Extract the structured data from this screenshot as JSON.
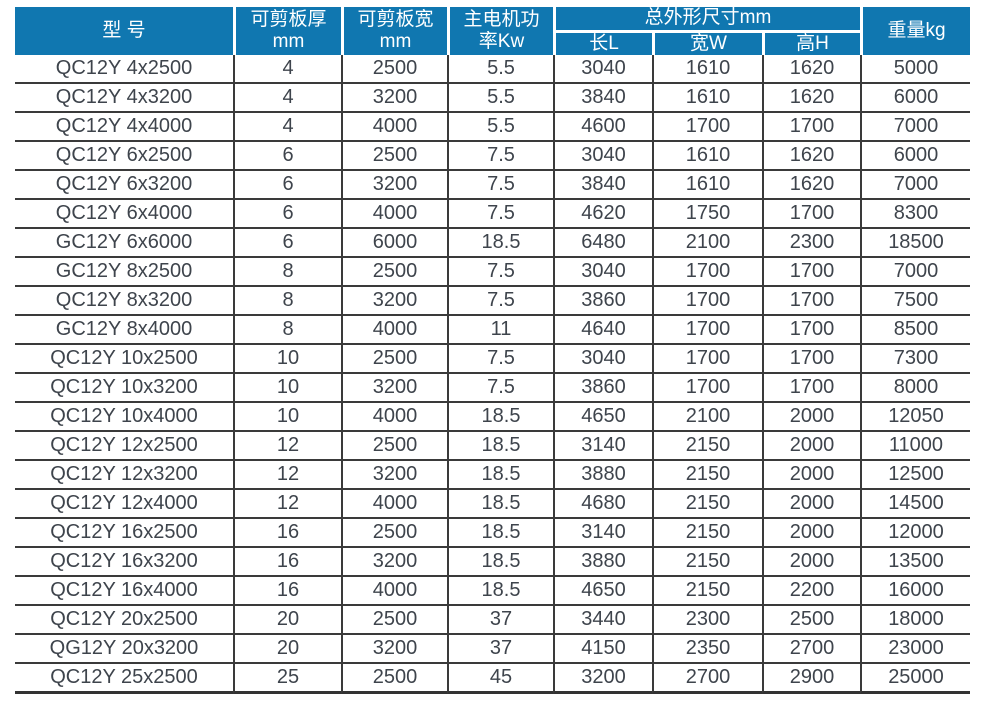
{
  "colors": {
    "header_bg": "#1077b0",
    "header_text": "#ffffff",
    "border": "#3a3a3a",
    "body_text": "#3e444c",
    "page_bg": "#ffffff"
  },
  "table": {
    "column_keys": [
      "model",
      "thickness_mm",
      "width_mm",
      "power_kw",
      "length_l",
      "width_w",
      "height_h",
      "weight_kg"
    ],
    "header": {
      "model": "型 号",
      "thickness_line1": "可剪板厚",
      "thickness_line2": "mm",
      "width_line1": "可剪板宽",
      "width_line2": "mm",
      "power_line1": "主电机功",
      "power_line2": "率Kw",
      "dimensions_group": "总外形尺寸mm",
      "dim_length": "长L",
      "dim_width": "宽W",
      "dim_height": "高H",
      "weight": "重量kg"
    },
    "rows": [
      [
        "QC12Y 4x2500",
        "4",
        "2500",
        "5.5",
        "3040",
        "1610",
        "1620",
        "5000"
      ],
      [
        "QC12Y 4x3200",
        "4",
        "3200",
        "5.5",
        "3840",
        "1610",
        "1620",
        "6000"
      ],
      [
        "QC12Y 4x4000",
        "4",
        "4000",
        "5.5",
        "4600",
        "1700",
        "1700",
        "7000"
      ],
      [
        "QC12Y 6x2500",
        "6",
        "2500",
        "7.5",
        "3040",
        "1610",
        "1620",
        "6000"
      ],
      [
        "QC12Y 6x3200",
        "6",
        "3200",
        "7.5",
        "3840",
        "1610",
        "1620",
        "7000"
      ],
      [
        "QC12Y 6x4000",
        "6",
        "4000",
        "7.5",
        "4620",
        "1750",
        "1700",
        "8300"
      ],
      [
        "GC12Y 6x6000",
        "6",
        "6000",
        "18.5",
        "6480",
        "2100",
        "2300",
        "18500"
      ],
      [
        "GC12Y 8x2500",
        "8",
        "2500",
        "7.5",
        "3040",
        "1700",
        "1700",
        "7000"
      ],
      [
        "QC12Y 8x3200",
        "8",
        "3200",
        "7.5",
        "3860",
        "1700",
        "1700",
        "7500"
      ],
      [
        "GC12Y 8x4000",
        "8",
        "4000",
        "11",
        "4640",
        "1700",
        "1700",
        "8500"
      ],
      [
        "QC12Y 10x2500",
        "10",
        "2500",
        "7.5",
        "3040",
        "1700",
        "1700",
        "7300"
      ],
      [
        "QC12Y 10x3200",
        "10",
        "3200",
        "7.5",
        "3860",
        "1700",
        "1700",
        "8000"
      ],
      [
        "QC12Y 10x4000",
        "10",
        "4000",
        "18.5",
        "4650",
        "2100",
        "2000",
        "12050"
      ],
      [
        "QC12Y 12x2500",
        "12",
        "2500",
        "18.5",
        "3140",
        "2150",
        "2000",
        "11000"
      ],
      [
        "QC12Y 12x3200",
        "12",
        "3200",
        "18.5",
        "3880",
        "2150",
        "2000",
        "12500"
      ],
      [
        "QC12Y 12x4000",
        "12",
        "4000",
        "18.5",
        "4680",
        "2150",
        "2000",
        "14500"
      ],
      [
        "QC12Y 16x2500",
        "16",
        "2500",
        "18.5",
        "3140",
        "2150",
        "2000",
        "12000"
      ],
      [
        "QC12Y 16x3200",
        "16",
        "3200",
        "18.5",
        "3880",
        "2150",
        "2000",
        "13500"
      ],
      [
        "QC12Y 16x4000",
        "16",
        "4000",
        "18.5",
        "4650",
        "2150",
        "2200",
        "16000"
      ],
      [
        "QC12Y 20x2500",
        "20",
        "2500",
        "37",
        "3440",
        "2300",
        "2500",
        "18000"
      ],
      [
        "QG12Y 20x3200",
        "20",
        "3200",
        "37",
        "4150",
        "2350",
        "2700",
        "23000"
      ],
      [
        "QC12Y 25x2500",
        "25",
        "2500",
        "45",
        "3200",
        "2700",
        "2900",
        "25000"
      ]
    ]
  }
}
